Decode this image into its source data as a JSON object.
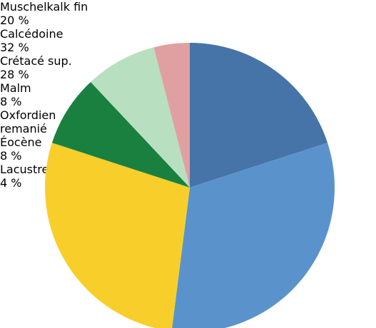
{
  "chart_data": {
    "type": "pie",
    "categories": [
      "Muschelkalk fin",
      "Calcédoine",
      "Crétacé sup.",
      "Malm",
      "Oxfordien remanié Éocène",
      "Lacustre"
    ],
    "values": [
      20,
      32,
      28,
      8,
      8,
      4
    ],
    "value_labels": [
      "20 %",
      "32 %",
      "28 %",
      "8 %",
      "8 %",
      "4 %"
    ],
    "colors": [
      "#4674a8",
      "#5a93cc",
      "#f8cf2a",
      "#1a8040",
      "#b8dfc0",
      "#e0a0a2"
    ]
  }
}
